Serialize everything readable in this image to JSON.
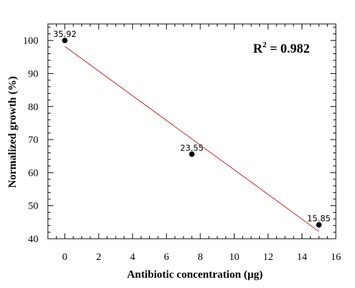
{
  "chart_data": {
    "type": "scatter",
    "xlabel": "Antibiotic concentration (µg)",
    "ylabel": "Normalized growth (%)",
    "xlim": [
      -1,
      16
    ],
    "ylim": [
      40,
      105
    ],
    "x_ticks": [
      0,
      2,
      4,
      6,
      8,
      10,
      12,
      14,
      16
    ],
    "y_ticks": [
      40,
      50,
      60,
      70,
      80,
      90,
      100
    ],
    "x_minor_step": 0.5,
    "y_minor_step": 2,
    "grid": false,
    "series": [
      {
        "points": [
          {
            "x": 0,
            "y": 100,
            "label": "35.92"
          },
          {
            "x": 7.5,
            "y": 65.6,
            "label": "23.55"
          },
          {
            "x": 15,
            "y": 44.2,
            "label": "15.85"
          }
        ],
        "marker_color": "#000000"
      }
    ],
    "trendline": {
      "x_start": 0,
      "y_start": 98.2,
      "x_end": 15,
      "y_end": 42.2,
      "color": "#c0201c"
    },
    "annotation": {
      "r2_prefix": "R",
      "r2_exp": "2",
      "r2_value": " = 0.982"
    }
  }
}
